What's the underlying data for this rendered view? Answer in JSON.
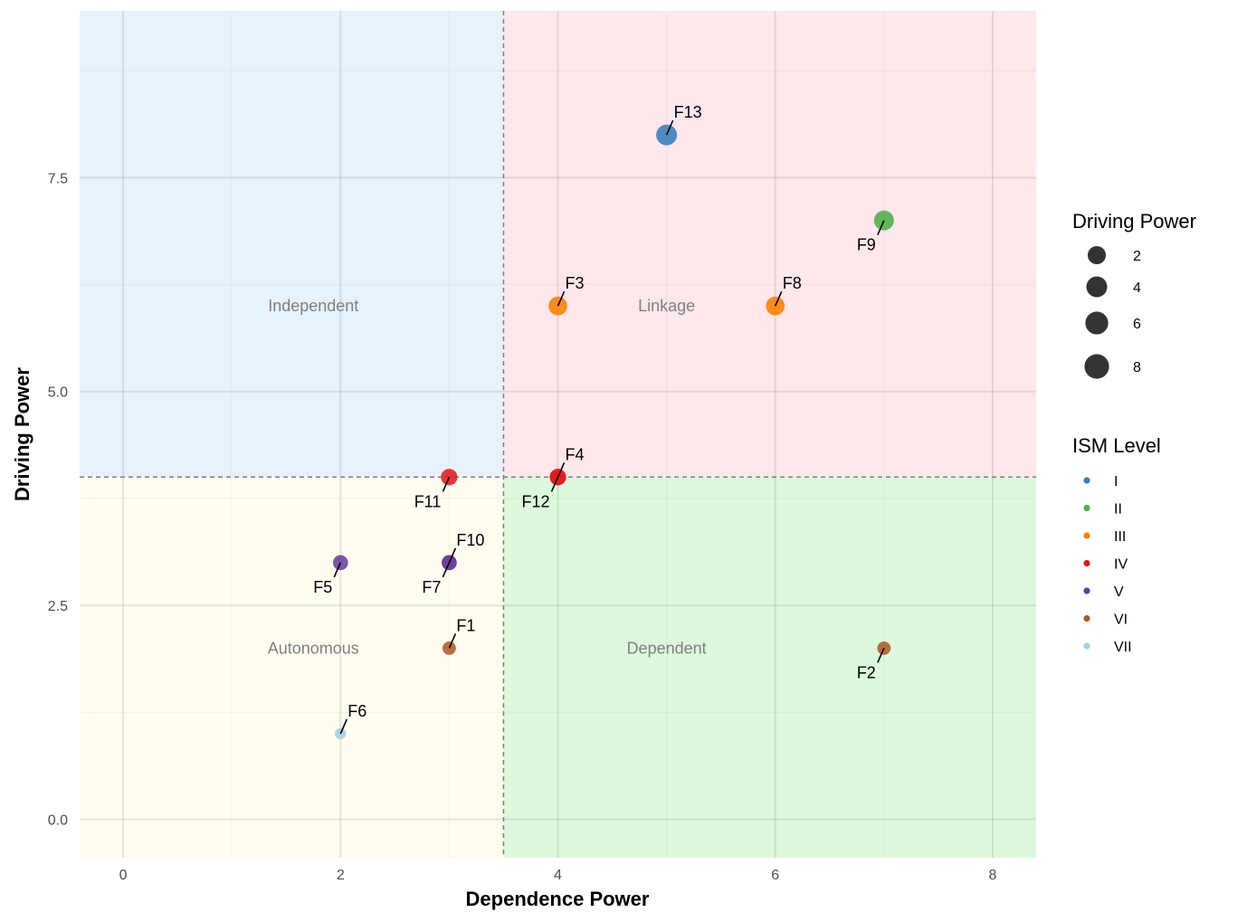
{
  "chart_data": {
    "type": "scatter",
    "xlabel": "Dependence Power",
    "ylabel": "Driving Power",
    "xlim": [
      -0.4,
      8.4
    ],
    "ylim": [
      -0.45,
      9.45
    ],
    "x_ticks": [
      0,
      2,
      4,
      6,
      8
    ],
    "y_ticks": [
      0.0,
      2.5,
      5.0,
      7.5
    ],
    "x_tick_labels": [
      "0",
      "2",
      "4",
      "6",
      "8"
    ],
    "y_tick_labels": [
      "0.0",
      "2.5",
      "5.0",
      "7.5"
    ],
    "grid": true,
    "thresholds": {
      "x": 3.5,
      "y": 4
    },
    "regions": [
      {
        "name": "Independent",
        "label": "Independent",
        "color": "#e7f2fa",
        "x": 1.75,
        "y": 6
      },
      {
        "name": "Linkage",
        "label": "Linkage",
        "color": "#ffe7ec",
        "x": 5,
        "y": 6
      },
      {
        "name": "Autonomous",
        "label": "Autonomous",
        "color": "#fffdf0",
        "x": 1.75,
        "y": 2
      },
      {
        "name": "Dependent",
        "label": "Dependent",
        "color": "#ddf9dd",
        "x": 5,
        "y": 2
      }
    ],
    "points": [
      {
        "label": "F1",
        "x": 3,
        "y": 2,
        "level": "VI",
        "size": 2
      },
      {
        "label": "F2",
        "x": 7,
        "y": 2,
        "level": "VI",
        "size": 2
      },
      {
        "label": "F3",
        "x": 4,
        "y": 6,
        "level": "III",
        "size": 6
      },
      {
        "label": "F4",
        "x": 4,
        "y": 4,
        "level": "IV",
        "size": 4
      },
      {
        "label": "F5",
        "x": 2,
        "y": 3,
        "level": "V",
        "size": 3
      },
      {
        "label": "F6",
        "x": 2,
        "y": 1,
        "level": "VII",
        "size": 1
      },
      {
        "label": "F7",
        "x": 3,
        "y": 3,
        "level": "V",
        "size": 3
      },
      {
        "label": "F8",
        "x": 6,
        "y": 6,
        "level": "III",
        "size": 6
      },
      {
        "label": "F9",
        "x": 7,
        "y": 7,
        "level": "II",
        "size": 7
      },
      {
        "label": "F10",
        "x": 3,
        "y": 3,
        "level": "V",
        "size": 3
      },
      {
        "label": "F11",
        "x": 3,
        "y": 4,
        "level": "IV",
        "size": 4
      },
      {
        "label": "F12",
        "x": 4,
        "y": 4,
        "level": "IV",
        "size": 4
      },
      {
        "label": "F13",
        "x": 5,
        "y": 8,
        "level": "I",
        "size": 8
      }
    ],
    "legend_size": {
      "title": "Driving Power",
      "items": [
        {
          "label": "2",
          "value": 2
        },
        {
          "label": "4",
          "value": 4
        },
        {
          "label": "6",
          "value": 6
        },
        {
          "label": "8",
          "value": 8
        }
      ]
    },
    "legend_color": {
      "title": "ISM Level",
      "items": [
        {
          "label": "I",
          "color": "#377eb8"
        },
        {
          "label": "II",
          "color": "#4daf4a"
        },
        {
          "label": "III",
          "color": "#ff7f00"
        },
        {
          "label": "IV",
          "color": "#e41a1c"
        },
        {
          "label": "V",
          "color": "#6a3d9a"
        },
        {
          "label": "VI",
          "color": "#b15928"
        },
        {
          "label": "VII",
          "color": "#a6cee3"
        }
      ]
    },
    "legend_placement": "right"
  }
}
